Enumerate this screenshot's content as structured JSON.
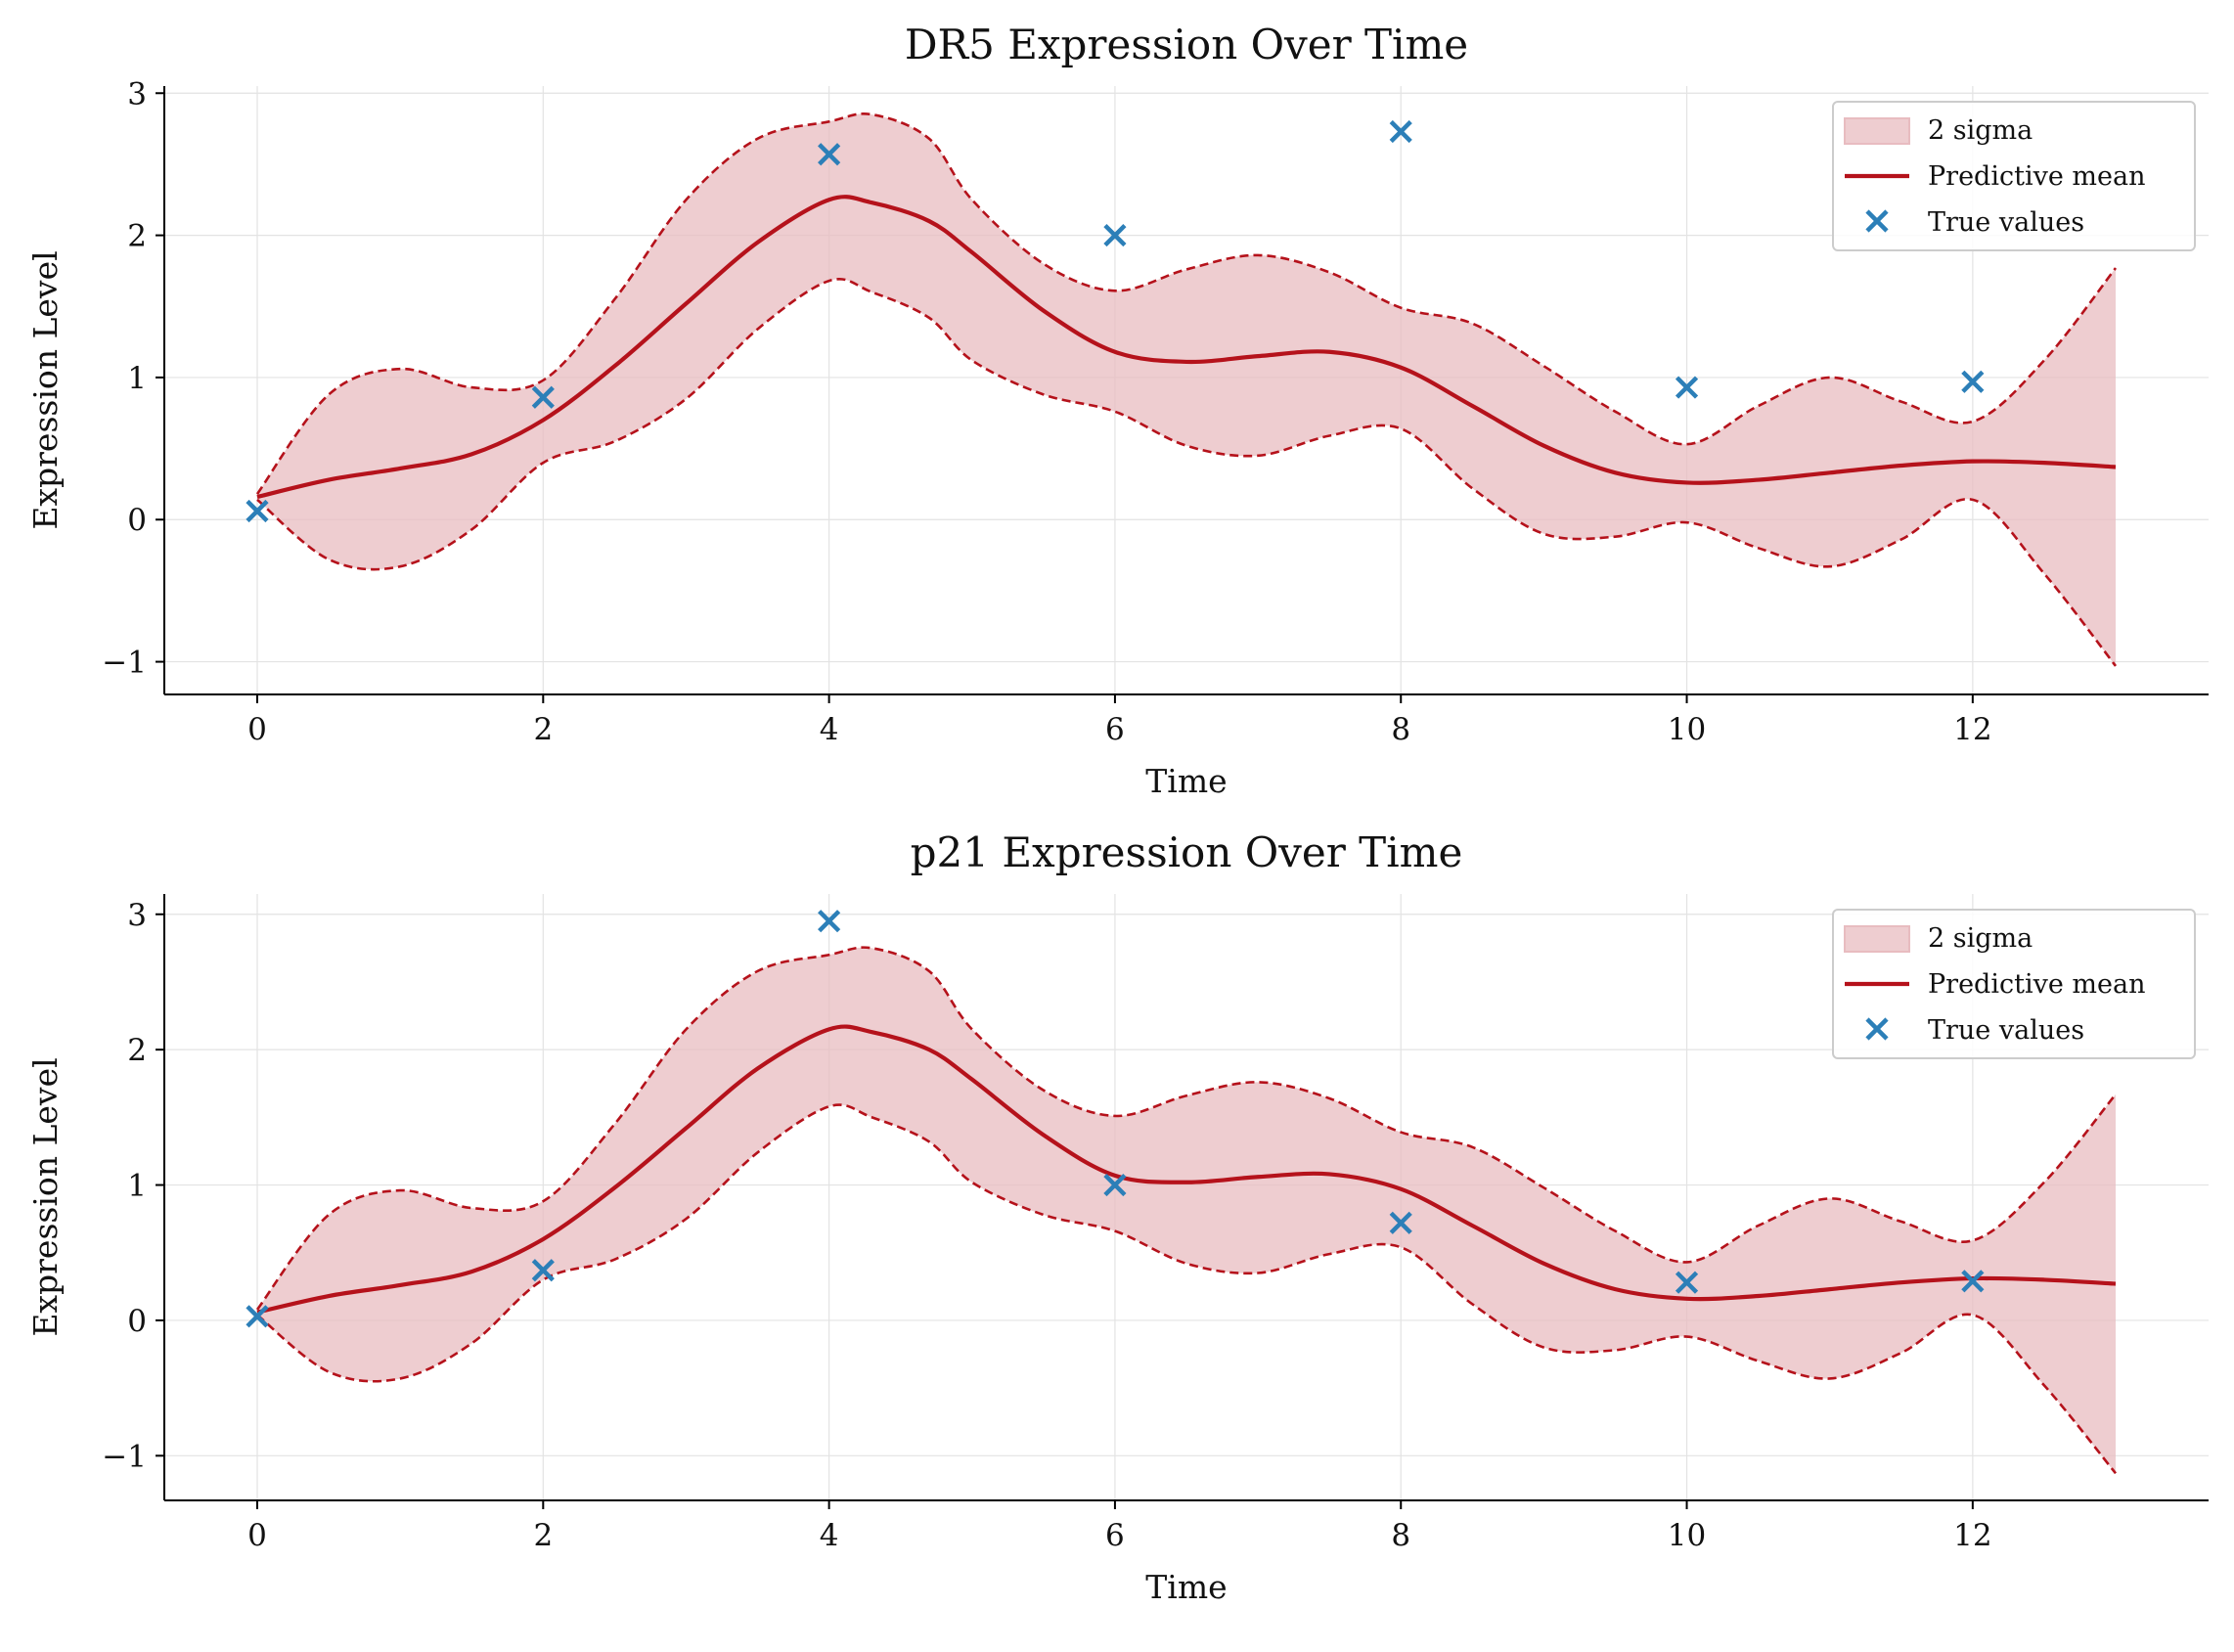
{
  "colors": {
    "band_fill": "#e8bcc0",
    "band_edge": "#b5121b",
    "mean_line": "#b5121b",
    "points": "#2c7fb8",
    "grid": "#e3e3e3",
    "axis": "#000000"
  },
  "legend": {
    "placement": "top-right",
    "band_label": "2 sigma",
    "mean_label": "Predictive mean",
    "points_label": "True values"
  },
  "chart_data": [
    {
      "type": "line",
      "title": "DR5 Expression Over Time",
      "xlabel": "Time",
      "ylabel": "Expression Level",
      "xlim": [
        -0.65,
        13.65
      ],
      "ylim": [
        -1.23,
        3.05
      ],
      "xticks": [
        0,
        2,
        4,
        6,
        8,
        10,
        12
      ],
      "xtick_labels": [
        "0",
        "2",
        "4",
        "6",
        "8",
        "10",
        "12"
      ],
      "yticks": [
        -1,
        0,
        1,
        2,
        3
      ],
      "ytick_labels": [
        "−1",
        "0",
        "1",
        "2",
        "3"
      ],
      "grid": true,
      "mean": {
        "name": "Predictive mean",
        "x": [
          0,
          0.5,
          1,
          1.5,
          2,
          2.5,
          3,
          3.5,
          4,
          4.3,
          4.7,
          5,
          5.5,
          6,
          6.5,
          7,
          7.5,
          8,
          8.5,
          9,
          9.5,
          10,
          10.5,
          11,
          11.5,
          12,
          12.5,
          13
        ],
        "y": [
          0.16,
          0.28,
          0.36,
          0.46,
          0.7,
          1.08,
          1.52,
          1.95,
          2.25,
          2.23,
          2.1,
          1.88,
          1.47,
          1.18,
          1.11,
          1.15,
          1.18,
          1.07,
          0.8,
          0.52,
          0.33,
          0.26,
          0.28,
          0.33,
          0.38,
          0.41,
          0.4,
          0.37
        ]
      },
      "band": {
        "name": "2 sigma",
        "x": [
          0,
          0.5,
          1,
          1.5,
          2,
          2.5,
          3,
          3.5,
          4,
          4.3,
          4.7,
          5,
          5.5,
          6,
          6.5,
          7,
          7.5,
          8,
          8.5,
          9,
          9.5,
          10,
          10.5,
          11,
          11.5,
          12,
          12.5,
          13
        ],
        "upper": [
          0.18,
          0.88,
          1.06,
          0.93,
          0.98,
          1.55,
          2.25,
          2.68,
          2.8,
          2.85,
          2.68,
          2.25,
          1.8,
          1.61,
          1.76,
          1.86,
          1.74,
          1.49,
          1.38,
          1.08,
          0.76,
          0.53,
          0.8,
          1.0,
          0.83,
          0.69,
          1.12,
          1.77
        ],
        "lower": [
          0.14,
          -0.28,
          -0.33,
          -0.07,
          0.4,
          0.55,
          0.85,
          1.34,
          1.68,
          1.6,
          1.42,
          1.12,
          0.88,
          0.76,
          0.52,
          0.45,
          0.59,
          0.64,
          0.22,
          -0.1,
          -0.12,
          -0.02,
          -0.2,
          -0.33,
          -0.14,
          0.14,
          -0.38,
          -1.03
        ]
      },
      "points": {
        "name": "True values",
        "x": [
          0,
          2,
          4,
          6,
          8,
          10,
          12
        ],
        "y": [
          0.06,
          0.86,
          2.57,
          2.0,
          2.73,
          0.93,
          0.97
        ]
      }
    },
    {
      "type": "line",
      "title": "p21 Expression Over Time",
      "xlabel": "Time",
      "ylabel": "Expression Level",
      "xlim": [
        -0.65,
        13.65
      ],
      "ylim": [
        -1.33,
        3.15
      ],
      "xticks": [
        0,
        2,
        4,
        6,
        8,
        10,
        12
      ],
      "xtick_labels": [
        "0",
        "2",
        "4",
        "6",
        "8",
        "10",
        "12"
      ],
      "yticks": [
        -1,
        0,
        1,
        2,
        3
      ],
      "ytick_labels": [
        "−1",
        "0",
        "1",
        "2",
        "3"
      ],
      "grid": true,
      "mean": {
        "name": "Predictive mean",
        "x": [
          0,
          0.5,
          1,
          1.5,
          2,
          2.5,
          3,
          3.5,
          4,
          4.3,
          4.7,
          5,
          5.5,
          6,
          6.5,
          7,
          7.5,
          8,
          8.5,
          9,
          9.5,
          10,
          10.5,
          11,
          11.5,
          12,
          12.5,
          13
        ],
        "y": [
          0.06,
          0.18,
          0.26,
          0.36,
          0.6,
          0.98,
          1.42,
          1.86,
          2.15,
          2.13,
          2.0,
          1.78,
          1.37,
          1.07,
          1.02,
          1.06,
          1.08,
          0.97,
          0.7,
          0.42,
          0.23,
          0.16,
          0.18,
          0.23,
          0.28,
          0.31,
          0.3,
          0.27
        ]
      },
      "band": {
        "name": "2 sigma",
        "x": [
          0,
          0.5,
          1,
          1.5,
          2,
          2.5,
          3,
          3.5,
          4,
          4.3,
          4.7,
          5,
          5.5,
          6,
          6.5,
          7,
          7.5,
          8,
          8.5,
          9,
          9.5,
          10,
          10.5,
          11,
          11.5,
          12,
          12.5,
          13
        ],
        "upper": [
          0.08,
          0.78,
          0.96,
          0.83,
          0.88,
          1.45,
          2.15,
          2.58,
          2.7,
          2.75,
          2.58,
          2.15,
          1.7,
          1.51,
          1.66,
          1.76,
          1.64,
          1.39,
          1.28,
          0.98,
          0.66,
          0.43,
          0.7,
          0.9,
          0.73,
          0.59,
          1.02,
          1.67
        ],
        "lower": [
          0.04,
          -0.38,
          -0.43,
          -0.17,
          0.3,
          0.45,
          0.75,
          1.24,
          1.58,
          1.5,
          1.32,
          1.02,
          0.78,
          0.66,
          0.42,
          0.35,
          0.49,
          0.54,
          0.12,
          -0.2,
          -0.22,
          -0.12,
          -0.3,
          -0.43,
          -0.24,
          0.04,
          -0.48,
          -1.13
        ]
      },
      "points": {
        "name": "True values",
        "x": [
          0,
          2,
          4,
          6,
          8,
          10,
          12
        ],
        "y": [
          0.03,
          0.37,
          2.95,
          1.0,
          0.72,
          0.28,
          0.29
        ]
      }
    }
  ]
}
